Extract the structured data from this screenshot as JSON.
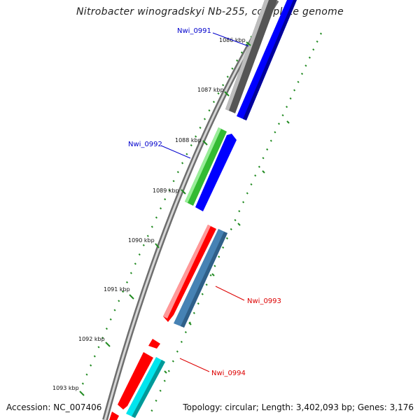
{
  "title": "Nitrobacter winogradskyi Nb-255, complete genome",
  "footer": {
    "accession": "Accession: NC_007406",
    "summary": "Topology: circular; Length: 3,402,093 bp; Genes: 3,176"
  },
  "colors": {
    "backbone": "#8a8a8a",
    "tick": "#228b22",
    "label_blue": "#0000cc",
    "label_red": "#dd0000"
  },
  "ticks": [
    {
      "label": "1086 kbp"
    },
    {
      "label": "1087 kbp"
    },
    {
      "label": "1088 kbp"
    },
    {
      "label": "1089 kbp"
    },
    {
      "label": "1090 kbp"
    },
    {
      "label": "1091 kbp"
    },
    {
      "label": "1092 kbp"
    },
    {
      "label": "1093 kbp"
    }
  ],
  "genes": [
    {
      "label": "Nwi_0991",
      "color": "blue"
    },
    {
      "label": "Nwi_0992",
      "color": "blue"
    },
    {
      "label": "Nwi_0993",
      "color": "red"
    },
    {
      "label": "Nwi_0994",
      "color": "red"
    }
  ],
  "feature_colors": {
    "gray": "#5a5a5a",
    "blue": "#0000ff",
    "green": "#33bb33",
    "red": "#ff0000",
    "steelblue": "#4682b4",
    "cyan": "#00e5ee"
  }
}
